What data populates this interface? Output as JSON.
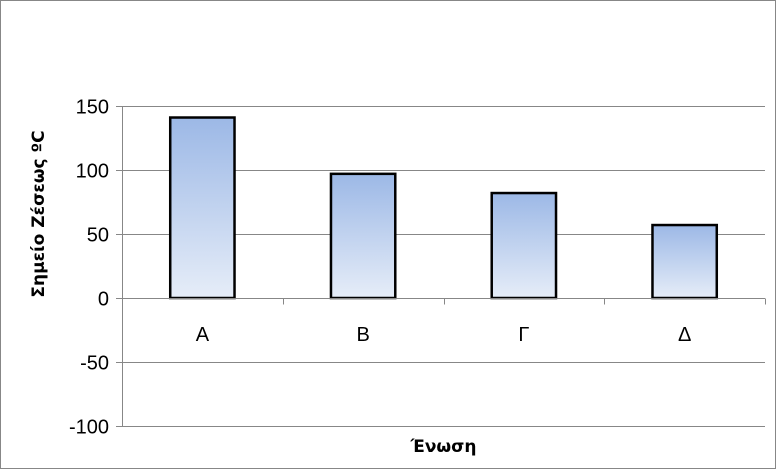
{
  "chart_data": {
    "type": "bar",
    "title": "",
    "xlabel": "Ένωση",
    "ylabel": "Σημείο Ζέσεως ºC",
    "categories": [
      "Α",
      "Β",
      "Γ",
      "Δ"
    ],
    "values": [
      141,
      97,
      82,
      57
    ],
    "ylim": [
      -100,
      150
    ],
    "yticks": [
      150,
      100,
      50,
      0,
      -50,
      -100
    ],
    "grid": true,
    "legend": "none",
    "colors": {
      "bar_top": "#9cb8e6",
      "bar_bottom": "#e6edf8",
      "bar_stroke": "#000000",
      "grid": "#878787",
      "frame": "#878787"
    }
  }
}
